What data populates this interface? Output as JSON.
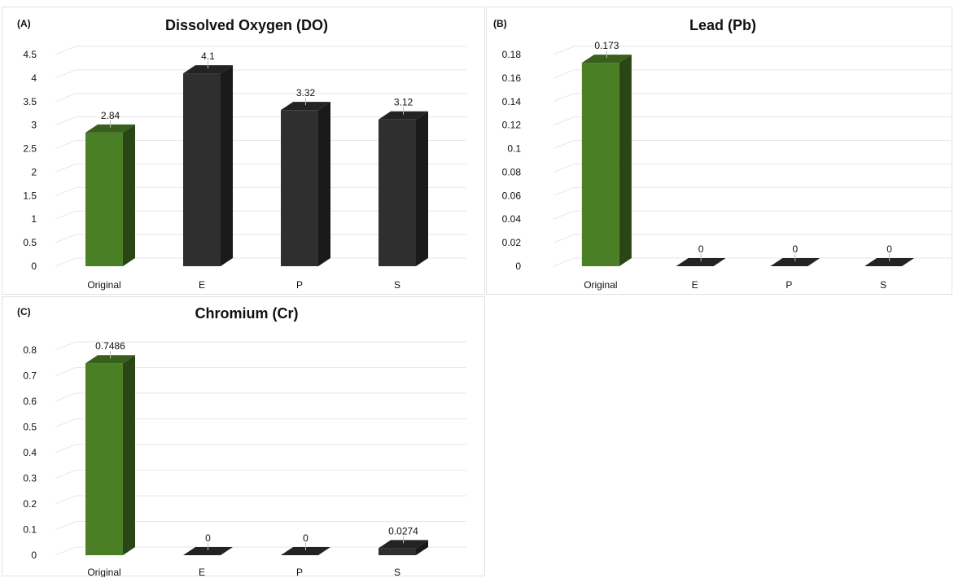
{
  "colors": {
    "highlight": "#4a7f25",
    "default": "#2f2f2f",
    "grid": "#e7e7e7",
    "text": "#111111"
  },
  "chart_data": [
    {
      "panel_label": "(A)",
      "type": "bar",
      "title": "Dissolved Oxygen (DO)",
      "categories": [
        "Original",
        "E",
        "P",
        "S"
      ],
      "values": [
        2.84,
        4.1,
        3.32,
        3.12
      ],
      "value_labels": [
        "2.84",
        "4.1",
        "3.32",
        "3.12"
      ],
      "ylim": [
        0,
        4.5
      ],
      "yticks": [
        "0",
        "0.5",
        "1",
        "1.5",
        "2",
        "2.5",
        "3",
        "3.5",
        "4",
        "4.5"
      ],
      "style": "3d-column",
      "grid": true,
      "legend": "none",
      "highlight_category": "Original"
    },
    {
      "panel_label": "(B)",
      "type": "bar",
      "title": "Lead (Pb)",
      "categories": [
        "Original",
        "E",
        "P",
        "S"
      ],
      "values": [
        0.173,
        0,
        0,
        0
      ],
      "value_labels": [
        "0.173",
        "0",
        "0",
        "0"
      ],
      "ylim": [
        0,
        0.18
      ],
      "yticks": [
        "0",
        "0.02",
        "0.04",
        "0.06",
        "0.08",
        "0.1",
        "0.12",
        "0.14",
        "0.16",
        "0.18"
      ],
      "style": "3d-column",
      "grid": true,
      "legend": "none",
      "highlight_category": "Original"
    },
    {
      "panel_label": "(C)",
      "type": "bar",
      "title": "Chromium (Cr)",
      "categories": [
        "Original",
        "E",
        "P",
        "S"
      ],
      "values": [
        0.7486,
        0,
        0,
        0.0274
      ],
      "value_labels": [
        "0.7486",
        "0",
        "0",
        "0.0274"
      ],
      "ylim": [
        0,
        0.8
      ],
      "yticks": [
        "0",
        "0.1",
        "0.2",
        "0.3",
        "0.4",
        "0.5",
        "0.6",
        "0.7",
        "0.8"
      ],
      "style": "3d-column",
      "grid": true,
      "legend": "none",
      "highlight_category": "Original"
    }
  ]
}
